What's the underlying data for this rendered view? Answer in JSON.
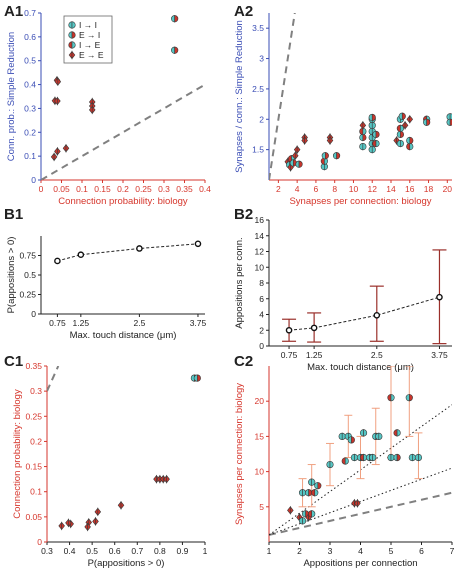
{
  "colors": {
    "cyan": "#56c6c4",
    "red": "#c8352c",
    "dark": "#3b3b3b",
    "blue_axis": "#3a4db5",
    "red_axis": "#d6362c",
    "err": "#f0a080",
    "dash": "#808080"
  },
  "panel_labels": [
    "A1",
    "A2",
    "B1",
    "B2",
    "C1",
    "C2"
  ],
  "legend": {
    "entries": [
      {
        "label": "I → I",
        "left": "cyan",
        "right": "cyan"
      },
      {
        "label": "E → I",
        "left": "cyan",
        "right": "red"
      },
      {
        "label": "I → E",
        "left": "red",
        "right": "cyan"
      },
      {
        "label": "E → E",
        "left": "red",
        "right": "red"
      }
    ]
  },
  "chart_data": [
    {
      "id": "A1",
      "type": "scatter",
      "xlabel": "Connection probability: biology",
      "ylabel": "Conn. prob.: Simple Reduction",
      "xlim": [
        0,
        0.4
      ],
      "ylim": [
        0,
        0.7
      ],
      "xticks": [
        0,
        0.05,
        0.1,
        0.15,
        0.2,
        0.25,
        0.3,
        0.35,
        0.4
      ],
      "xticklabels": [
        "0",
        "0.05",
        "0.1",
        "0.15",
        "0.2",
        "0.25",
        "0.3",
        "0.35",
        "0.4"
      ],
      "yticks": [
        0,
        0.1,
        0.2,
        0.3,
        0.4,
        0.5,
        0.6,
        0.7
      ],
      "yticklabels": [
        "0",
        "0.1",
        "0.2",
        "0.3",
        "0.4",
        "0.5",
        "0.6",
        "0.7"
      ],
      "identity_line": true,
      "points": [
        {
          "x": 0.326,
          "y": 0.676,
          "t": "EI"
        },
        {
          "x": 0.326,
          "y": 0.544,
          "t": "EI"
        },
        {
          "x": 0.039,
          "y": 0.418,
          "t": "EE"
        },
        {
          "x": 0.041,
          "y": 0.412,
          "t": "EE"
        },
        {
          "x": 0.034,
          "y": 0.332,
          "t": "EE"
        },
        {
          "x": 0.04,
          "y": 0.331,
          "t": "EE"
        },
        {
          "x": 0.125,
          "y": 0.327,
          "t": "EE"
        },
        {
          "x": 0.125,
          "y": 0.31,
          "t": "EE"
        },
        {
          "x": 0.125,
          "y": 0.294,
          "t": "EE"
        },
        {
          "x": 0.061,
          "y": 0.133,
          "t": "EE"
        },
        {
          "x": 0.04,
          "y": 0.12,
          "t": "EE"
        },
        {
          "x": 0.032,
          "y": 0.097,
          "t": "EE"
        }
      ]
    },
    {
      "id": "A2",
      "type": "scatter",
      "xlabel": "Synapses per connection: biology",
      "ylabel": "Synapses / conn.: Simple Reduction",
      "xlim": [
        1,
        20.5
      ],
      "ylim": [
        1.0,
        3.75
      ],
      "xticks": [
        2,
        4,
        6,
        8,
        10,
        12,
        14,
        16,
        18,
        20
      ],
      "xticklabels": [
        "2",
        "4",
        "6",
        "8",
        "10",
        "12",
        "14",
        "16",
        "18",
        "20"
      ],
      "yticks": [
        1.5,
        2,
        2.5,
        3,
        3.5
      ],
      "yticklabels": [
        "1.5",
        "2",
        "2.5",
        "3",
        "3.5"
      ],
      "identity_line": true,
      "points": [
        {
          "x": 3.0,
          "y": 1.3,
          "t": "EE"
        },
        {
          "x": 3.2,
          "y": 1.25,
          "t": "EI"
        },
        {
          "x": 3.4,
          "y": 1.35,
          "t": "IE"
        },
        {
          "x": 3.3,
          "y": 1.21,
          "t": "EE"
        },
        {
          "x": 3.6,
          "y": 1.28,
          "t": "EI"
        },
        {
          "x": 3.8,
          "y": 1.4,
          "t": "EE"
        },
        {
          "x": 4.0,
          "y": 1.5,
          "t": "EE"
        },
        {
          "x": 4.2,
          "y": 1.26,
          "t": "EI"
        },
        {
          "x": 4.8,
          "y": 1.7,
          "t": "EE"
        },
        {
          "x": 4.8,
          "y": 1.65,
          "t": "EE"
        },
        {
          "x": 6.9,
          "y": 1.22,
          "t": "II"
        },
        {
          "x": 6.9,
          "y": 1.31,
          "t": "IE"
        },
        {
          "x": 7.0,
          "y": 1.4,
          "t": "EI"
        },
        {
          "x": 7.5,
          "y": 1.7,
          "t": "EE"
        },
        {
          "x": 7.5,
          "y": 1.65,
          "t": "EE"
        },
        {
          "x": 8.2,
          "y": 1.4,
          "t": "EI"
        },
        {
          "x": 11.0,
          "y": 1.55,
          "t": "II"
        },
        {
          "x": 11.0,
          "y": 1.7,
          "t": "EI"
        },
        {
          "x": 11.0,
          "y": 1.8,
          "t": "IE"
        },
        {
          "x": 11.0,
          "y": 1.9,
          "t": "EE"
        },
        {
          "x": 12.0,
          "y": 1.5,
          "t": "II"
        },
        {
          "x": 12.0,
          "y": 1.6,
          "t": "II"
        },
        {
          "x": 12.0,
          "y": 1.7,
          "t": "II"
        },
        {
          "x": 12.0,
          "y": 1.8,
          "t": "II"
        },
        {
          "x": 12.0,
          "y": 1.9,
          "t": "II"
        },
        {
          "x": 12.0,
          "y": 2.0,
          "t": "II"
        },
        {
          "x": 12.0,
          "y": 2.03,
          "t": "EI"
        },
        {
          "x": 12.4,
          "y": 1.6,
          "t": "IE"
        },
        {
          "x": 12.4,
          "y": 1.75,
          "t": "EI"
        },
        {
          "x": 14.6,
          "y": 1.65,
          "t": "EE"
        },
        {
          "x": 15.0,
          "y": 1.6,
          "t": "II"
        },
        {
          "x": 15.0,
          "y": 1.75,
          "t": "EI"
        },
        {
          "x": 15.0,
          "y": 1.85,
          "t": "IE"
        },
        {
          "x": 15.0,
          "y": 2.0,
          "t": "II"
        },
        {
          "x": 15.2,
          "y": 2.05,
          "t": "EI"
        },
        {
          "x": 15.5,
          "y": 1.9,
          "t": "EE"
        },
        {
          "x": 16.0,
          "y": 1.55,
          "t": "IE"
        },
        {
          "x": 16.0,
          "y": 1.65,
          "t": "EI"
        },
        {
          "x": 16.0,
          "y": 2.0,
          "t": "EE"
        },
        {
          "x": 17.8,
          "y": 2.0,
          "t": "IE"
        },
        {
          "x": 17.8,
          "y": 1.95,
          "t": "EI"
        },
        {
          "x": 20.3,
          "y": 2.04,
          "t": "II"
        },
        {
          "x": 20.3,
          "y": 1.95,
          "t": "EI"
        }
      ]
    },
    {
      "id": "B1",
      "type": "line",
      "xlabel": "Max. touch distance (μm)",
      "ylabel": "P(appositions > 0)",
      "xlim": [
        0.4,
        3.9
      ],
      "ylim": [
        0,
        1.0
      ],
      "xticks": [
        0.75,
        1.25,
        2.5,
        3.75
      ],
      "xticklabels": [
        "0.75",
        "1.25",
        "2.5",
        "3.75"
      ],
      "yticks": [
        0,
        0.25,
        0.5,
        0.75
      ],
      "yticklabels": [
        "0",
        "0.25",
        "0.5",
        "0.75"
      ],
      "x": [
        0.75,
        1.25,
        2.5,
        3.75
      ],
      "y": [
        0.68,
        0.76,
        0.84,
        0.9
      ]
    },
    {
      "id": "B2",
      "type": "line",
      "xlabel": "Max. touch distance (μm)",
      "ylabel": "Appositions per conn.",
      "xlim": [
        0.35,
        4.0
      ],
      "ylim": [
        0,
        16
      ],
      "xticks": [
        0.75,
        1.25,
        2.5,
        3.75
      ],
      "xticklabels": [
        "0.75",
        "1.25",
        "2.5",
        "3.75"
      ],
      "yticks": [
        0,
        2,
        4,
        6,
        8,
        10,
        12,
        14,
        16
      ],
      "yticklabels": [
        "0",
        "2",
        "4",
        "6",
        "8",
        "10",
        "12",
        "14",
        "16"
      ],
      "x": [
        0.75,
        1.25,
        2.5,
        3.75
      ],
      "y": [
        2.0,
        2.3,
        3.9,
        6.2
      ],
      "err_low": [
        0.6,
        0.5,
        0.6,
        0.3
      ],
      "err_high": [
        3.4,
        4.2,
        7.6,
        12.2
      ]
    },
    {
      "id": "C1",
      "type": "scatter",
      "xlabel": "P(appositions > 0)",
      "ylabel": "Connection probability: biology",
      "xlim": [
        0.3,
        1.0
      ],
      "ylim": [
        0,
        0.35
      ],
      "xticks": [
        0.3,
        0.4,
        0.5,
        0.6,
        0.7,
        0.8,
        0.9,
        1
      ],
      "xticklabels": [
        "0.3",
        "0.4",
        "0.5",
        "0.6",
        "0.7",
        "0.8",
        "0.9",
        "1"
      ],
      "yticks": [
        0,
        0.05,
        0.1,
        0.15,
        0.2,
        0.25,
        0.3,
        0.35
      ],
      "yticklabels": [
        "0",
        "0.05",
        "0.1",
        "0.15",
        "0.2",
        "0.25",
        "0.3",
        "0.35"
      ],
      "identity_line": true,
      "points": [
        {
          "x": 0.953,
          "y": 0.326,
          "t": "EI"
        },
        {
          "x": 0.966,
          "y": 0.326,
          "t": "EI"
        },
        {
          "x": 0.785,
          "y": 0.125,
          "t": "EE"
        },
        {
          "x": 0.8,
          "y": 0.125,
          "t": "EE"
        },
        {
          "x": 0.815,
          "y": 0.125,
          "t": "EE"
        },
        {
          "x": 0.83,
          "y": 0.125,
          "t": "EE"
        },
        {
          "x": 0.628,
          "y": 0.073,
          "t": "EE"
        },
        {
          "x": 0.525,
          "y": 0.06,
          "t": "EE"
        },
        {
          "x": 0.515,
          "y": 0.041,
          "t": "EE"
        },
        {
          "x": 0.485,
          "y": 0.039,
          "t": "EE"
        },
        {
          "x": 0.48,
          "y": 0.03,
          "t": "EE"
        },
        {
          "x": 0.405,
          "y": 0.036,
          "t": "EE"
        },
        {
          "x": 0.395,
          "y": 0.038,
          "t": "EE"
        },
        {
          "x": 0.365,
          "y": 0.032,
          "t": "EE"
        }
      ]
    },
    {
      "id": "C2",
      "type": "scatter",
      "xlabel": "Appositions per connection",
      "ylabel": "Synapses per connection: biology",
      "xlim": [
        1,
        7
      ],
      "ylim": [
        0,
        25
      ],
      "xticks": [
        1,
        2,
        3,
        4,
        5,
        6,
        7
      ],
      "xticklabels": [
        "1",
        "2",
        "3",
        "4",
        "5",
        "6",
        "7"
      ],
      "yticks": [
        5,
        10,
        15,
        20
      ],
      "yticklabels": [
        "5",
        "10",
        "15",
        "20"
      ],
      "identity_line": true,
      "fit_lines": [
        {
          "x": [
            1,
            7
          ],
          "y": [
            1.0,
            19.5
          ]
        },
        {
          "x": [
            1,
            7
          ],
          "y": [
            1.0,
            10.5
          ]
        }
      ],
      "points": [
        {
          "x": 5.0,
          "y": 20.5,
          "t": "IE"
        },
        {
          "x": 5.6,
          "y": 20.5,
          "t": "EI"
        },
        {
          "x": 4.1,
          "y": 15.5,
          "t": "II"
        },
        {
          "x": 4.5,
          "y": 15.0,
          "t": "EI"
        },
        {
          "x": 4.6,
          "y": 15.0,
          "t": "II"
        },
        {
          "x": 5.2,
          "y": 15.5,
          "t": "IE"
        },
        {
          "x": 3.4,
          "y": 15.0,
          "t": "II"
        },
        {
          "x": 3.6,
          "y": 15.0,
          "t": "II"
        },
        {
          "x": 3.7,
          "y": 14.5,
          "t": "EI"
        },
        {
          "x": 3.0,
          "y": 11.0,
          "t": "II"
        },
        {
          "x": 3.5,
          "y": 11.5,
          "t": "IE"
        },
        {
          "x": 3.8,
          "y": 12.0,
          "t": "II"
        },
        {
          "x": 4.0,
          "y": 12.0,
          "t": "II"
        },
        {
          "x": 4.1,
          "y": 12.0,
          "t": "IE"
        },
        {
          "x": 4.3,
          "y": 12.0,
          "t": "II"
        },
        {
          "x": 4.4,
          "y": 12.0,
          "t": "II"
        },
        {
          "x": 5.0,
          "y": 12.0,
          "t": "II"
        },
        {
          "x": 5.2,
          "y": 12.0,
          "t": "EI"
        },
        {
          "x": 5.7,
          "y": 12.0,
          "t": "II"
        },
        {
          "x": 5.9,
          "y": 12.0,
          "t": "II"
        },
        {
          "x": 2.1,
          "y": 7.0,
          "t": "II"
        },
        {
          "x": 2.3,
          "y": 7.0,
          "t": "EI"
        },
        {
          "x": 2.5,
          "y": 7.0,
          "t": "IE"
        },
        {
          "x": 2.4,
          "y": 8.5,
          "t": "II"
        },
        {
          "x": 2.6,
          "y": 8.0,
          "t": "EI"
        },
        {
          "x": 1.7,
          "y": 4.5,
          "t": "EE"
        },
        {
          "x": 2.0,
          "y": 3.5,
          "t": "EE"
        },
        {
          "x": 2.1,
          "y": 3.0,
          "t": "II"
        },
        {
          "x": 2.2,
          "y": 4.0,
          "t": "EI"
        },
        {
          "x": 2.3,
          "y": 3.5,
          "t": "EE"
        },
        {
          "x": 2.4,
          "y": 4.0,
          "t": "IE"
        },
        {
          "x": 3.8,
          "y": 5.5,
          "t": "EE"
        },
        {
          "x": 3.9,
          "y": 5.5,
          "t": "EE"
        }
      ],
      "error_bars": [
        {
          "x": 5.0,
          "lo": 12.0,
          "hi": 25.0
        },
        {
          "x": 5.6,
          "lo": 15.0,
          "hi": 25.0
        },
        {
          "x": 4.5,
          "lo": 11.0,
          "hi": 19.0
        },
        {
          "x": 3.6,
          "lo": 12.0,
          "hi": 18.0
        },
        {
          "x": 3.0,
          "lo": 8.0,
          "hi": 14.0
        },
        {
          "x": 4.0,
          "lo": 9.0,
          "hi": 15.0
        },
        {
          "x": 5.9,
          "lo": 9.0,
          "hi": 15.5
        },
        {
          "x": 2.4,
          "lo": 5.0,
          "hi": 11.0
        },
        {
          "x": 2.1,
          "lo": 5.0,
          "hi": 9.0
        }
      ]
    }
  ]
}
